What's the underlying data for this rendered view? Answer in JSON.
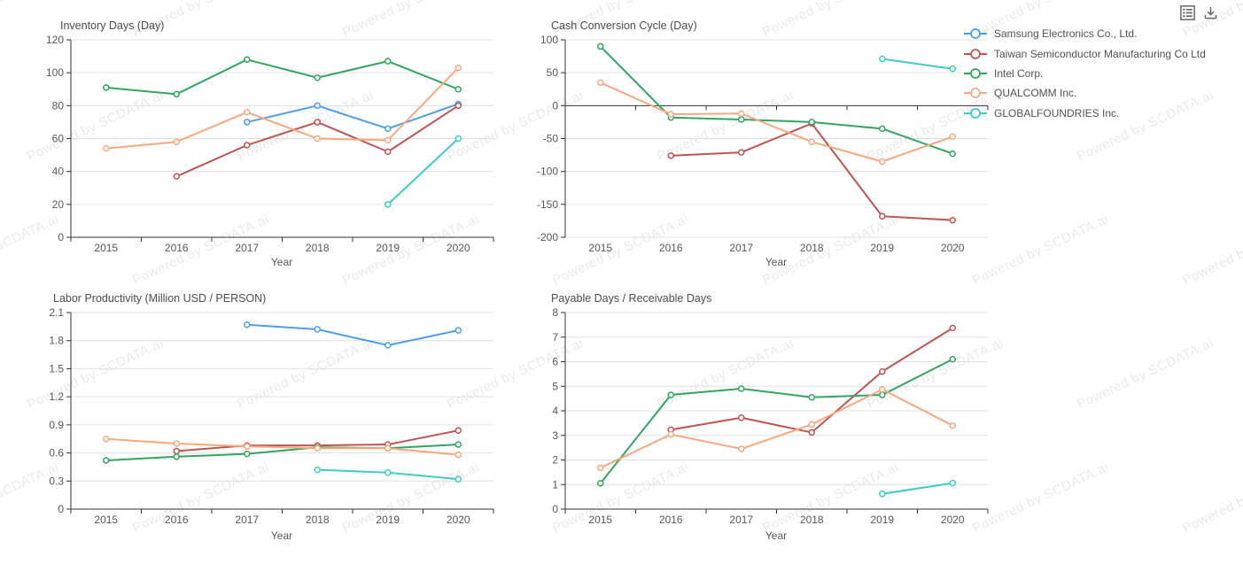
{
  "watermark": {
    "text": "Powered by SCDATA.ai"
  },
  "toolbox": {
    "icons": [
      {
        "name": "data-view-icon"
      },
      {
        "name": "save-as-image-icon"
      }
    ]
  },
  "legend": {
    "position": "top-right",
    "items": [
      {
        "label": "Samsung Electronics Co., Ltd.",
        "color": "#4D9FE6"
      },
      {
        "label": "Taiwan Semiconductor Manufacturing Co Ltd",
        "color": "#BF5552"
      },
      {
        "label": "Intel Corp.",
        "color": "#33A561"
      },
      {
        "label": "QUALCOMM Inc.",
        "color": "#F6A87F"
      },
      {
        "label": "GLOBALFOUNDRIES Inc.",
        "color": "#3FCCC5"
      }
    ]
  },
  "chart_data": [
    {
      "id": "inventory-days",
      "type": "line",
      "title": "Inventory Days (Day)",
      "xlabel": "Year",
      "categories": [
        "2015",
        "2016",
        "2017",
        "2018",
        "2019",
        "2020"
      ],
      "ylim": [
        0,
        120
      ],
      "yticks": [
        "0",
        "20",
        "40",
        "60",
        "80",
        "100",
        "120"
      ],
      "grid": true,
      "series": [
        {
          "name": "Samsung Electronics Co., Ltd.",
          "values": [
            null,
            null,
            70,
            80,
            66,
            81
          ]
        },
        {
          "name": "Taiwan Semiconductor Manufacturing Co Ltd",
          "values": [
            null,
            37,
            56,
            70,
            52,
            80
          ]
        },
        {
          "name": "Intel Corp.",
          "values": [
            91,
            87,
            108,
            97,
            107,
            90
          ]
        },
        {
          "name": "QUALCOMM Inc.",
          "values": [
            54,
            58,
            76,
            60,
            59,
            103
          ]
        },
        {
          "name": "GLOBALFOUNDRIES Inc.",
          "values": [
            null,
            null,
            null,
            null,
            20,
            60
          ]
        }
      ]
    },
    {
      "id": "cash-conversion-cycle",
      "type": "line",
      "title": "Cash Conversion Cycle (Day)",
      "xlabel": "Year",
      "categories": [
        "2015",
        "2016",
        "2017",
        "2018",
        "2019",
        "2020"
      ],
      "ylim": [
        -200,
        100
      ],
      "yticks": [
        "-200",
        "-150",
        "-100",
        "-50",
        "0",
        "50",
        "100"
      ],
      "grid": true,
      "series": [
        {
          "name": "Taiwan Semiconductor Manufacturing Co Ltd",
          "values": [
            null,
            -76,
            -71,
            -27,
            -168,
            -174
          ]
        },
        {
          "name": "Intel Corp.",
          "values": [
            90,
            -18,
            -21,
            -25,
            -35,
            -73
          ]
        },
        {
          "name": "QUALCOMM Inc.",
          "values": [
            35,
            -13,
            -12,
            -55,
            -85,
            -47
          ]
        },
        {
          "name": "GLOBALFOUNDRIES Inc.",
          "values": [
            null,
            null,
            null,
            null,
            71,
            56
          ]
        }
      ]
    },
    {
      "id": "labor-productivity",
      "type": "line",
      "title": "Labor Productivity (Million USD / PERSON)",
      "xlabel": "Year",
      "categories": [
        "2015",
        "2016",
        "2017",
        "2018",
        "2019",
        "2020"
      ],
      "ylim": [
        0,
        2.1
      ],
      "yticks": [
        "0",
        "0.3",
        "0.6",
        "0.9",
        "1.2",
        "1.5",
        "1.8",
        "2.1"
      ],
      "grid": true,
      "series": [
        {
          "name": "Samsung Electronics Co., Ltd.",
          "values": [
            null,
            null,
            1.97,
            1.92,
            1.75,
            1.91
          ]
        },
        {
          "name": "Taiwan Semiconductor Manufacturing Co Ltd",
          "values": [
            null,
            0.62,
            0.68,
            0.68,
            0.69,
            0.84
          ]
        },
        {
          "name": "Intel Corp.",
          "values": [
            0.52,
            0.56,
            0.59,
            0.66,
            0.65,
            0.69
          ]
        },
        {
          "name": "QUALCOMM Inc.",
          "values": [
            0.75,
            0.7,
            0.67,
            0.65,
            0.65,
            0.58
          ]
        },
        {
          "name": "GLOBALFOUNDRIES Inc.",
          "values": [
            null,
            null,
            null,
            0.42,
            0.39,
            0.32
          ]
        }
      ]
    },
    {
      "id": "payable-receivable-days",
      "type": "line",
      "title": "Payable Days / Receivable Days",
      "xlabel": "Year",
      "categories": [
        "2015",
        "2016",
        "2017",
        "2018",
        "2019",
        "2020"
      ],
      "ylim": [
        0,
        8
      ],
      "yticks": [
        "0",
        "1",
        "2",
        "3",
        "4",
        "5",
        "6",
        "7",
        "8"
      ],
      "grid": true,
      "series": [
        {
          "name": "Taiwan Semiconductor Manufacturing Co Ltd",
          "values": [
            null,
            3.23,
            3.72,
            3.12,
            5.6,
            7.37
          ]
        },
        {
          "name": "Intel Corp.",
          "values": [
            1.05,
            4.65,
            4.9,
            4.55,
            4.65,
            6.1
          ]
        },
        {
          "name": "QUALCOMM Inc.",
          "values": [
            1.68,
            3.04,
            2.45,
            3.45,
            4.87,
            3.4
          ]
        },
        {
          "name": "GLOBALFOUNDRIES Inc.",
          "values": [
            null,
            null,
            null,
            null,
            0.62,
            1.06
          ]
        }
      ]
    }
  ]
}
